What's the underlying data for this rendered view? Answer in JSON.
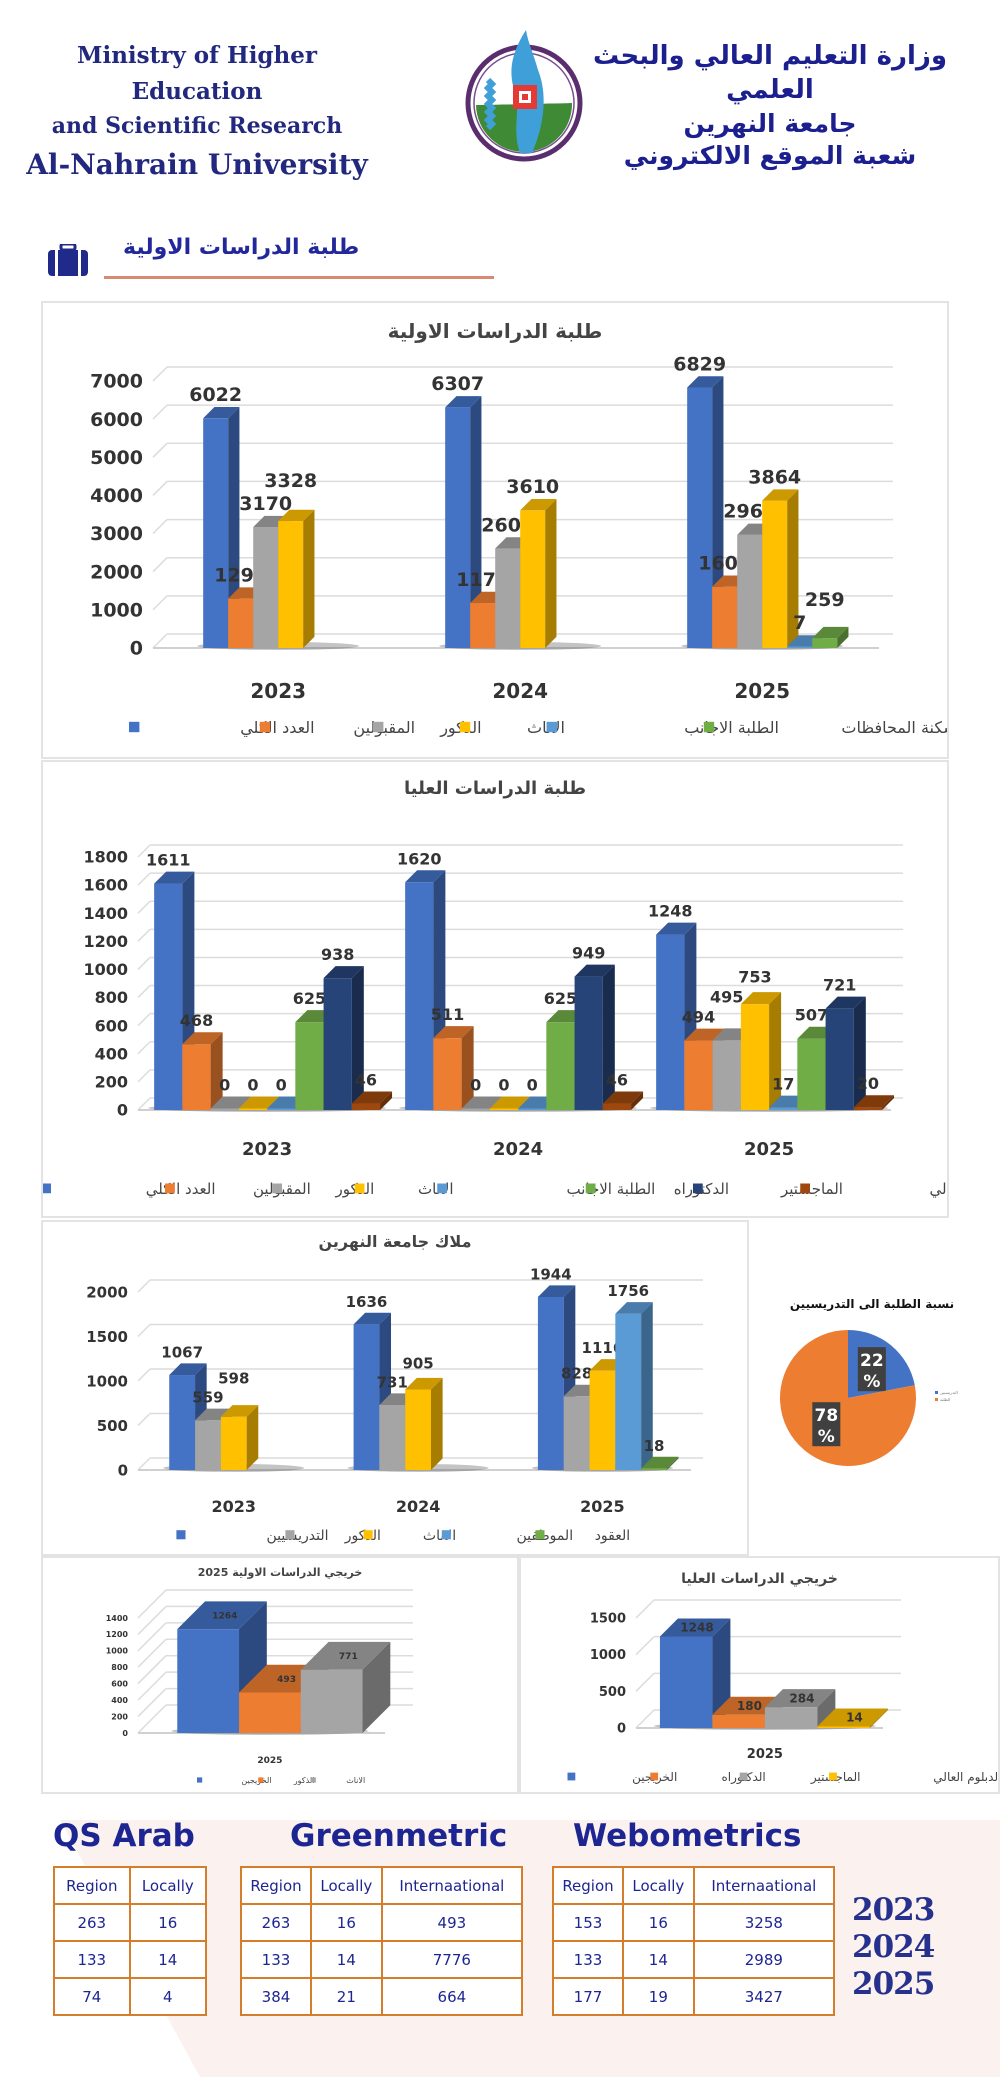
{
  "header": {
    "english_lines": [
      "Ministry of Higher Education",
      "and Scientific Research",
      "Al-Nahrain University"
    ],
    "arabic_lines": [
      "وزارة التعليم العالي والبحث العلمي",
      "جامعة النهرين",
      "شعبة الموقع الالكتروني"
    ],
    "logo": "al-nahrain-university-logo"
  },
  "section": {
    "icon": "briefcase-icon",
    "title": "طلبة الدراسات الاولية",
    "accent_color": "#d98a72"
  },
  "colors": {
    "blue": "#4472c4",
    "orange": "#ed7d31",
    "gray": "#a5a5a5",
    "yellow": "#ffc000",
    "lightblue": "#5b9bd5",
    "green": "#70ad47",
    "navy": "#264478",
    "brown": "#9e480e"
  },
  "chart_data": [
    {
      "id": "undergrad",
      "type": "bar",
      "title": "طلبة الدراسات الاولية",
      "categories": [
        "2023",
        "2024",
        "2025"
      ],
      "ylim": [
        0,
        7000
      ],
      "yticks": [
        0,
        1000,
        2000,
        3000,
        4000,
        5000,
        6000,
        7000
      ],
      "grid": true,
      "legend": "bottom",
      "series": [
        {
          "name": "العدد الكلي",
          "color": "#4472c4",
          "values": [
            6022,
            6307,
            6829
          ]
        },
        {
          "name": "المقبولين",
          "color": "#ed7d31",
          "values": [
            1294,
            1179,
            1607
          ]
        },
        {
          "name": "الذكور",
          "color": "#a5a5a5",
          "values": [
            3170,
            2607,
            2965
          ]
        },
        {
          "name": "الاناث",
          "color": "#ffc000",
          "values": [
            3328,
            3610,
            3864
          ]
        },
        {
          "name": "الطلبة الاجانب",
          "color": "#5b9bd5",
          "values": [
            null,
            null,
            7
          ]
        },
        {
          "name": "سكنة المحافظات",
          "color": "#70ad47",
          "values": [
            null,
            null,
            259
          ]
        }
      ]
    },
    {
      "id": "postgrad",
      "type": "bar",
      "title": "طلبة الدراسات العليا",
      "categories": [
        "2023",
        "2024",
        "2025"
      ],
      "ylim": [
        0,
        1800
      ],
      "yticks": [
        0,
        200,
        400,
        600,
        800,
        1000,
        1200,
        1400,
        1600,
        1800
      ],
      "grid": true,
      "legend": "bottom",
      "series": [
        {
          "name": "العدد الكلي",
          "color": "#4472c4",
          "values": [
            1611,
            1620,
            1248
          ]
        },
        {
          "name": "المقبولين",
          "color": "#ed7d31",
          "values": [
            468,
            511,
            494
          ]
        },
        {
          "name": "الذكور",
          "color": "#a5a5a5",
          "values": [
            0,
            0,
            495
          ]
        },
        {
          "name": "الاناث",
          "color": "#ffc000",
          "values": [
            0,
            0,
            753
          ]
        },
        {
          "name": "الطلبة الاجانب",
          "color": "#5b9bd5",
          "values": [
            0,
            0,
            17
          ]
        },
        {
          "name": "الدكتوراه",
          "color": "#70ad47",
          "values": [
            625,
            625,
            507
          ]
        },
        {
          "name": "الماجستير",
          "color": "#264478",
          "values": [
            938,
            949,
            721
          ]
        },
        {
          "name": "الدبلوم العالي",
          "color": "#9e480e",
          "values": [
            46,
            46,
            20
          ]
        }
      ]
    },
    {
      "id": "staff",
      "type": "bar",
      "title": "ملاك جامعة النهرين",
      "categories": [
        "2023",
        "2024",
        "2025"
      ],
      "ylim": [
        0,
        2000
      ],
      "yticks": [
        0,
        500,
        1000,
        1500,
        2000
      ],
      "grid": true,
      "legend": "bottom",
      "series": [
        {
          "name": "التدريسيين",
          "color": "#4472c4",
          "values": [
            1067,
            1636,
            1944
          ]
        },
        {
          "name": "الذكور",
          "color": "#a5a5a5",
          "values": [
            559,
            731,
            828
          ]
        },
        {
          "name": "الاناث",
          "color": "#ffc000",
          "values": [
            598,
            905,
            1116
          ]
        },
        {
          "name": "الموظفين",
          "color": "#5b9bd5",
          "values": [
            null,
            null,
            1756
          ]
        },
        {
          "name": "العقود",
          "color": "#70ad47",
          "values": [
            null,
            null,
            18
          ]
        }
      ]
    },
    {
      "id": "ratio",
      "type": "pie",
      "title": "نسبة الطلبة الى التدريسيين",
      "legend": "right",
      "slices": [
        {
          "name": "التدريسيين",
          "color": "#4472c4",
          "value": 22,
          "label": "22 %"
        },
        {
          "name": "الطلبة",
          "color": "#ed7d31",
          "value": 78,
          "label": "78 %"
        }
      ]
    },
    {
      "id": "ug_grads",
      "type": "bar",
      "title": "خريجي الدراسات الاولية 2025",
      "categories": [
        "2025"
      ],
      "ylim": [
        0,
        1400
      ],
      "yticks": [
        0,
        200,
        400,
        600,
        800,
        1000,
        1200,
        1400
      ],
      "grid": true,
      "legend": "bottom",
      "series": [
        {
          "name": "الخريجين",
          "color": "#4472c4",
          "values": [
            1264
          ]
        },
        {
          "name": "الذكور",
          "color": "#ed7d31",
          "values": [
            493
          ]
        },
        {
          "name": "الاناث",
          "color": "#a5a5a5",
          "values": [
            771
          ]
        }
      ]
    },
    {
      "id": "pg_grads",
      "type": "bar",
      "title": "خريجي الدراسات العليا",
      "categories": [
        "2025"
      ],
      "ylim": [
        0,
        1500
      ],
      "yticks": [
        0,
        500,
        1000,
        1500
      ],
      "grid": true,
      "legend": "bottom",
      "series": [
        {
          "name": "الخريجين",
          "color": "#4472c4",
          "values": [
            1248
          ]
        },
        {
          "name": "الدكتوراه",
          "color": "#ed7d31",
          "values": [
            180
          ]
        },
        {
          "name": "الماجستير",
          "color": "#a5a5a5",
          "values": [
            284
          ]
        },
        {
          "name": "الدبلوم العالي",
          "color": "#ffc000",
          "values": [
            14
          ]
        }
      ]
    }
  ],
  "rankings": {
    "years": [
      "2023",
      "2024",
      "2025"
    ],
    "qs_arab": {
      "title": "QS Arab",
      "headers": [
        "Region",
        "Locally"
      ],
      "rows": [
        [
          "263",
          "16"
        ],
        [
          "133",
          "14"
        ],
        [
          "74",
          "4"
        ]
      ]
    },
    "greenmetric": {
      "title": "Greenmetric",
      "headers": [
        "Region",
        "Locally",
        "Internaational"
      ],
      "rows": [
        [
          "263",
          "16",
          "493"
        ],
        [
          "133",
          "14",
          "7776"
        ],
        [
          "384",
          "21",
          "664"
        ]
      ]
    },
    "webometrics": {
      "title": "Webometrics",
      "headers": [
        "Region",
        "Locally",
        "Internaational"
      ],
      "rows": [
        [
          "153",
          "16",
          "3258"
        ],
        [
          "133",
          "14",
          "2989"
        ],
        [
          "177",
          "19",
          "3427"
        ]
      ]
    }
  }
}
